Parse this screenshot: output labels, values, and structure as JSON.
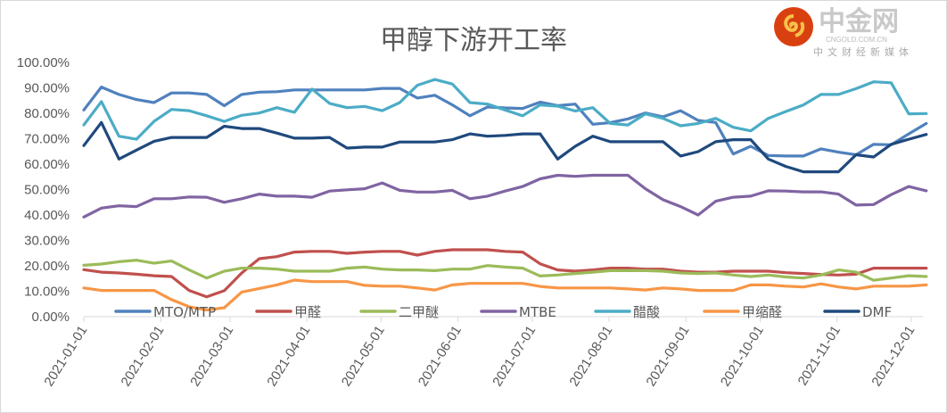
{
  "chart_data": {
    "type": "line",
    "title": "甲醇下游开工率",
    "xlabel": "",
    "ylabel": "",
    "ylim": [
      0,
      100
    ],
    "y_ticks": [
      "0.00%",
      "10.00%",
      "20.00%",
      "30.00%",
      "40.00%",
      "50.00%",
      "60.00%",
      "70.00%",
      "80.00%",
      "90.00%",
      "100.00%"
    ],
    "x_ticks": [
      "2021-01-01",
      "2021-02-01",
      "2021-03-01",
      "2021-04-01",
      "2021-05-01",
      "2021-06-01",
      "2021-07-01",
      "2021-08-01",
      "2021-09-01",
      "2021-10-01",
      "2021-11-01",
      "2021-12-01"
    ],
    "x_tick_days": [
      0,
      31,
      59,
      90,
      120,
      151,
      181,
      212,
      243,
      273,
      304,
      334
    ],
    "x_note": "weekly observations starting 2021-01-01 (x = week index, 7 days apart)",
    "grid": false,
    "legend_position": "bottom-inside",
    "series": [
      {
        "name": "MTO/MTP",
        "color": "#4F81BD",
        "values": [
          81.3,
          90.3,
          87.4,
          85.4,
          84.2,
          88,
          88,
          87.4,
          83,
          87.4,
          88.3,
          88.5,
          89.2,
          89.2,
          89.2,
          89.2,
          89.2,
          89.8,
          89.8,
          86,
          87.1,
          83.3,
          79,
          82.5,
          82.1,
          81.9,
          84.4,
          83,
          83.6,
          75.7,
          76.3,
          77.8,
          80.1,
          78.6,
          81,
          77.2,
          76.4,
          64,
          67,
          63.4,
          63.2,
          63.2,
          66,
          64.7,
          63.7,
          67.8,
          67.6,
          71.9,
          76
        ]
      },
      {
        "name": "甲醛",
        "color": "#C0504D",
        "values": [
          18.5,
          17.5,
          17.2,
          16.7,
          16.1,
          15.8,
          10.3,
          7.8,
          10.2,
          17.2,
          22.8,
          23.6,
          25.4,
          25.7,
          25.7,
          24.9,
          25.4,
          25.7,
          25.7,
          24.2,
          25.7,
          26.3,
          26.3,
          26.3,
          25.7,
          25.4,
          20.8,
          18.4,
          17.9,
          18.4,
          19.1,
          19.1,
          18.7,
          18.7,
          17.9,
          17.5,
          17.5,
          17.9,
          17.9,
          17.9,
          17.3,
          17,
          16.6,
          16.4,
          16.7,
          19.1,
          19.1,
          19.1,
          19.1
        ]
      },
      {
        "name": "二甲醚",
        "color": "#9BBB59",
        "values": [
          20.2,
          20.7,
          21.6,
          22.2,
          21,
          21.9,
          18.4,
          15.2,
          17.9,
          19.1,
          19.1,
          18.7,
          17.9,
          17.9,
          17.9,
          19.1,
          19.5,
          18.7,
          18.4,
          18.4,
          18.1,
          18.7,
          18.7,
          20.1,
          19.5,
          19.1,
          16,
          16.4,
          17,
          17.5,
          18.1,
          18.1,
          18.1,
          17.9,
          17.2,
          17,
          17.2,
          16.4,
          15.8,
          16.4,
          15.6,
          15.2,
          16.4,
          18.4,
          17.5,
          14.3,
          15.2,
          16.1,
          15.8
        ]
      },
      {
        "name": "MTBE",
        "color": "#8064A2",
        "values": [
          39.2,
          42.7,
          43.6,
          43.3,
          46.4,
          46.4,
          47.1,
          47,
          45,
          46.4,
          48.2,
          47.4,
          47.4,
          47,
          49.4,
          49.9,
          50.3,
          52.6,
          49.7,
          49,
          49,
          49.7,
          46.4,
          47.4,
          49.4,
          51.2,
          54.2,
          55.6,
          55.2,
          55.6,
          55.6,
          55.6,
          50.3,
          46,
          43.3,
          40,
          45.4,
          47,
          47.4,
          49.5,
          49.4,
          49.1,
          49.1,
          48.2,
          43.9,
          44.1,
          48,
          51.2,
          49.5
        ]
      },
      {
        "name": "醋酸",
        "color": "#4BACC6",
        "values": [
          75.4,
          84.6,
          71,
          69.8,
          76.8,
          81.5,
          81,
          79,
          76.8,
          79.2,
          80.1,
          82.2,
          80.4,
          89.5,
          83.9,
          82.2,
          82.7,
          81,
          84.2,
          91,
          93.3,
          91.5,
          84.2,
          83.6,
          81.3,
          79,
          83.3,
          82.8,
          80.9,
          82.2,
          76,
          75.4,
          79.8,
          78,
          75.1,
          76,
          78,
          74.5,
          73.1,
          78,
          80.7,
          83.3,
          87.4,
          87.4,
          89.7,
          92.4,
          92,
          79.8,
          79.9
        ]
      },
      {
        "name": "甲缩醛",
        "color": "#F79646",
        "values": [
          11.3,
          10.3,
          10.3,
          10.3,
          10.3,
          6.7,
          3.9,
          2.6,
          3.5,
          9.7,
          11.1,
          12.5,
          14.4,
          13.8,
          13.8,
          13.8,
          12.3,
          12,
          12,
          11.3,
          10.5,
          12.5,
          13.1,
          13.1,
          13.1,
          13.1,
          11.9,
          11.3,
          11.3,
          11.3,
          11.3,
          10.9,
          10.5,
          11.3,
          10.9,
          10.3,
          10.3,
          10.3,
          12.5,
          12.5,
          12,
          11.7,
          12.9,
          11.7,
          10.9,
          12,
          12,
          12,
          12.5
        ]
      },
      {
        "name": "DMF",
        "color": "#1F497D",
        "values": [
          67.3,
          76.4,
          62,
          65.5,
          69,
          70.5,
          70.5,
          70.5,
          74.9,
          74,
          74,
          72.2,
          70.2,
          70.2,
          70.5,
          66.3,
          66.7,
          66.7,
          68.7,
          68.7,
          68.7,
          69.6,
          71.9,
          71,
          71.3,
          71.9,
          71.9,
          62,
          67,
          71,
          68.8,
          68.8,
          68.8,
          68.8,
          63.2,
          64.9,
          68.8,
          69.6,
          69.6,
          62,
          59.1,
          57,
          57,
          57,
          63.7,
          62.8,
          67.8,
          69.8,
          71.7
        ]
      }
    ]
  },
  "watermark": {
    "logo_text": "中金网",
    "site": "CNGOLD.COM.CN",
    "tagline": "中文财经新媒体"
  }
}
